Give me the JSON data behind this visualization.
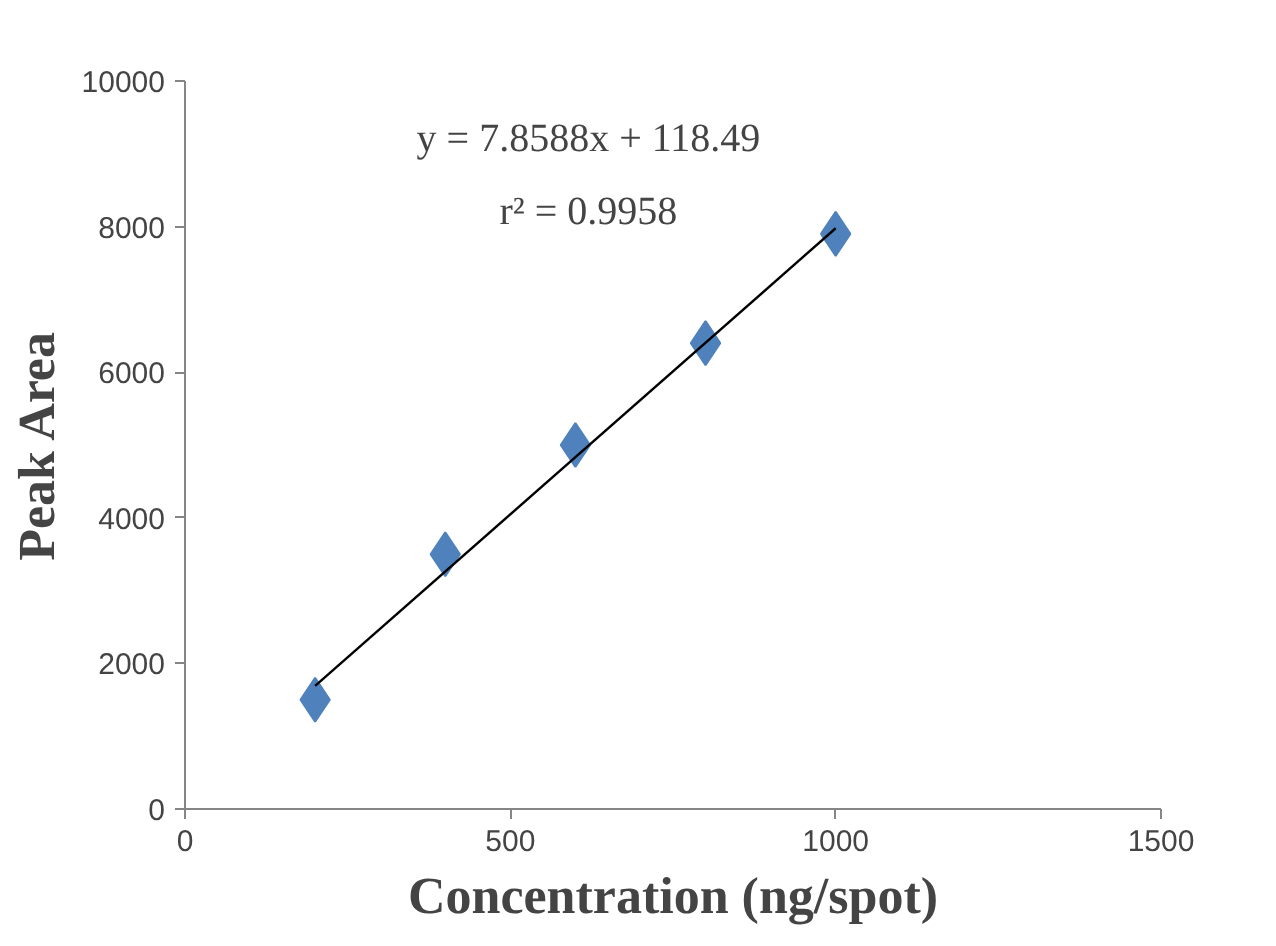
{
  "chart_data": {
    "type": "scatter",
    "xlabel": "Concentration (ng/spot)",
    "ylabel": "Peak Area",
    "x": [
      200,
      400,
      600,
      800,
      1000
    ],
    "series": [
      {
        "color": "#4f81bd",
        "marker": "diamond",
        "values": [
          1500,
          3500,
          5000,
          6400,
          7900
        ]
      },
      {
        "type": "line",
        "color": "#000000",
        "x": [
          200,
          1000
        ],
        "values": [
          1690,
          7977
        ]
      }
    ],
    "annotations": [
      "y = 7.8588x + 118.49",
      "r² = 0.9958"
    ],
    "xlim": [
      0,
      1500
    ],
    "xticks": [
      0,
      500,
      1000,
      1500
    ],
    "ylim": [
      0,
      10000
    ],
    "yticks": [
      0,
      2000,
      4000,
      6000,
      8000,
      10000
    ],
    "grid": false
  }
}
